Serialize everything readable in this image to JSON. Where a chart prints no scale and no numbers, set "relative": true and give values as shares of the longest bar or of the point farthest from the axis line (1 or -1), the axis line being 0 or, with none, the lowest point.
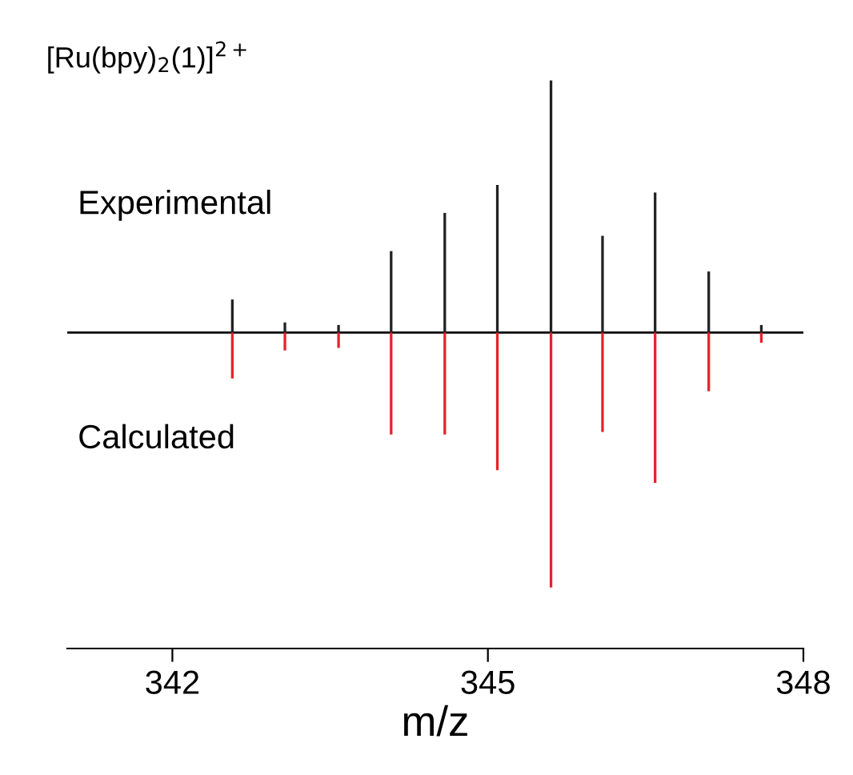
{
  "chart_data": {
    "type": "bar",
    "title": "[Ru(bpy)$_{2}$(1)]$^{2+}$",
    "xlabel": "m/z",
    "relative": true,
    "xlim": [
      341,
      348
    ],
    "xticks": [
      342,
      345,
      348
    ],
    "tick_labels": "x",
    "grid": false,
    "legend": false,
    "series": [
      {
        "name": "Experimental",
        "color": "#222222",
        "x": [
          342.57,
          343.07,
          343.58,
          344.08,
          344.59,
          345.09,
          345.6,
          346.09,
          346.59,
          347.1,
          347.6
        ],
        "values": [
          0.13,
          0.04,
          0.03,
          0.32,
          0.47,
          0.58,
          0.99,
          0.38,
          0.55,
          0.24,
          0.03
        ]
      },
      {
        "name": "Calculated",
        "color": "#e8212b",
        "x": [
          342.57,
          343.07,
          343.58,
          344.08,
          344.59,
          345.09,
          345.6,
          346.09,
          346.59,
          347.1,
          347.6
        ],
        "values": [
          -0.18,
          -0.07,
          -0.06,
          -0.4,
          -0.4,
          -0.54,
          -1,
          -0.39,
          -0.59,
          -0.23,
          -0.04
        ]
      }
    ]
  }
}
